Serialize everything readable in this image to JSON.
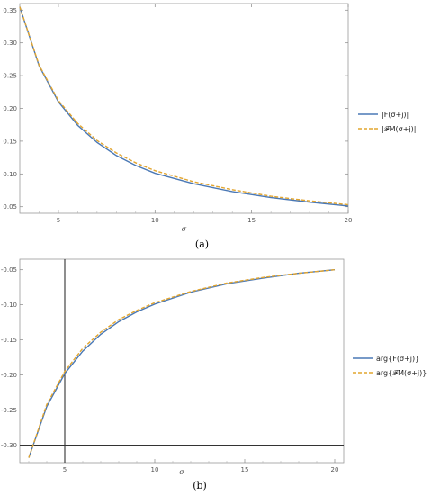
{
  "chart_data": [
    {
      "type": "line",
      "caption": "(a)",
      "xlabel": "σ",
      "xlim": [
        3,
        20
      ],
      "ylim": [
        0.04,
        0.36
      ],
      "xticks": [
        5,
        10,
        15,
        20
      ],
      "yticks": [
        0.05,
        0.1,
        0.15,
        0.2,
        0.25,
        0.3,
        0.35
      ],
      "ytick_labels": [
        "0.05",
        "0.10",
        "0.15",
        "0.20",
        "0.25",
        "0.30",
        "0.35"
      ],
      "legend_position": "right",
      "series": [
        {
          "name": "|F(σ+j)|",
          "color": "#4a78b5",
          "dash": "solid",
          "x": [
            3,
            4,
            5,
            6,
            7,
            8,
            9,
            10,
            12,
            14,
            16,
            18,
            20
          ],
          "y": [
            0.355,
            0.265,
            0.21,
            0.174,
            0.148,
            0.128,
            0.113,
            0.101,
            0.085,
            0.073,
            0.064,
            0.057,
            0.051
          ]
        },
        {
          "name": "|𝓕M(σ+j)|",
          "color": "#e2a52f",
          "dash": "dashed",
          "x": [
            3,
            4,
            5,
            6,
            7,
            8,
            9,
            10,
            12,
            14,
            16,
            18,
            20
          ],
          "y": [
            0.355,
            0.266,
            0.212,
            0.177,
            0.151,
            0.132,
            0.117,
            0.105,
            0.088,
            0.076,
            0.066,
            0.059,
            0.053
          ]
        }
      ]
    },
    {
      "type": "line",
      "caption": "(b)",
      "xlabel": "σ",
      "xlim": [
        2.5,
        20.5
      ],
      "ylim": [
        -0.325,
        -0.035
      ],
      "xticks": [
        5,
        10,
        15,
        20
      ],
      "yticks": [
        -0.05,
        -0.1,
        -0.15,
        -0.2,
        -0.25,
        -0.3
      ],
      "ytick_labels": [
        "-0.05",
        "-0.10",
        "-0.15",
        "-0.20",
        "-0.25",
        "-0.30"
      ],
      "reference_lines": {
        "vertical_x": 5,
        "horizontal_y": -0.3
      },
      "legend_position": "right",
      "series": [
        {
          "name": "arg{F(σ+j)}",
          "color": "#4a78b5",
          "dash": "solid",
          "x": [
            3,
            4,
            5,
            6,
            7,
            8,
            9,
            10,
            12,
            14,
            16,
            18,
            20
          ],
          "y": [
            -0.318,
            -0.245,
            -0.198,
            -0.166,
            -0.142,
            -0.124,
            -0.11,
            -0.099,
            -0.082,
            -0.07,
            -0.062,
            -0.055,
            -0.05
          ]
        },
        {
          "name": "arg{𝓕M(σ+j)}",
          "color": "#e2a52f",
          "dash": "dashed",
          "x": [
            3,
            4,
            5,
            6,
            7,
            8,
            9,
            10,
            12,
            14,
            16,
            18,
            20
          ],
          "y": [
            -0.318,
            -0.242,
            -0.195,
            -0.162,
            -0.139,
            -0.121,
            -0.108,
            -0.097,
            -0.081,
            -0.069,
            -0.061,
            -0.055,
            -0.05
          ]
        }
      ]
    }
  ]
}
